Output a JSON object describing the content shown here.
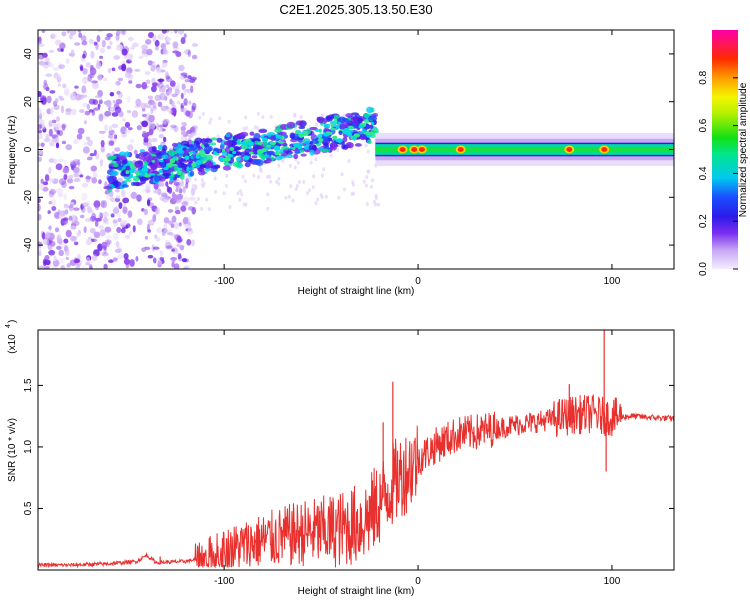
{
  "chart_data": [
    {
      "type": "heatmap",
      "title": "C2E1.2025.305.13.50.E30",
      "xlabel": "Height of straight line (km)",
      "ylabel": "Frequency (Hz)",
      "xlim": [
        -196,
        132
      ],
      "ylim": [
        -50,
        50
      ],
      "xticks": [
        -100,
        0,
        100
      ],
      "xtick_labels": [
        "-100",
        "0",
        "100"
      ],
      "yticks": [
        -40,
        -20,
        0,
        20,
        40
      ],
      "ytick_labels": [
        "-40",
        "-20",
        "0",
        "20",
        "40"
      ],
      "colorbar": {
        "label": "Normalized spectral amplitude",
        "range": [
          0,
          1
        ],
        "ticks": [
          0.0,
          0.2,
          0.4,
          0.6,
          0.8
        ],
        "tick_labels": [
          "0.0",
          "0.2",
          "0.4",
          "0.6",
          "0.8"
        ]
      },
      "features": {
        "noise_band_x": [
          -196,
          -115
        ],
        "trace_start_x": -160,
        "trace_end_x": -22,
        "trace_freq_start": -10,
        "trace_freq_end": 10,
        "band_start_x": -22,
        "band_freq": 0,
        "band_halfwidth_freq": 3,
        "peak_markers_x": [
          -8,
          -2,
          2,
          22,
          78,
          96
        ]
      }
    },
    {
      "type": "line",
      "xlabel": "Height of straight line (km)",
      "ylabel": "SNR (10 * v/v)",
      "y_multiplier_label": "(x10",
      "y_multiplier_exp": "4",
      "xlim": [
        -196,
        132
      ],
      "ylim": [
        0,
        19500
      ],
      "xticks": [
        -100,
        0,
        100
      ],
      "xtick_labels": [
        "-100",
        "0",
        "100"
      ],
      "yticks": [
        5000,
        10000,
        15000
      ],
      "ytick_labels": [
        "0.5",
        "1.0",
        "1.5"
      ],
      "series": [
        {
          "name": "SNR",
          "color": "#e8312e",
          "x": [
            -196,
            -180,
            -160,
            -145,
            -140,
            -135,
            -120,
            -110,
            -100,
            -90,
            -80,
            -70,
            -60,
            -50,
            -40,
            -30,
            -25,
            -20,
            -15,
            -10,
            -5,
            0,
            10,
            20,
            30,
            40,
            50,
            60,
            70,
            80,
            90,
            95,
            100,
            110,
            120,
            132
          ],
          "y": [
            400,
            400,
            500,
            700,
            1200,
            600,
            700,
            1000,
            1600,
            2000,
            2400,
            2700,
            3000,
            3100,
            3300,
            3800,
            4400,
            5400,
            6600,
            7500,
            8200,
            9000,
            10200,
            11000,
            11200,
            11500,
            11800,
            12000,
            12300,
            12600,
            12700,
            12500,
            12400,
            12500,
            12400,
            12300
          ]
        }
      ],
      "spikes": [
        {
          "x": -133,
          "y": 1100
        },
        {
          "x": -13,
          "y": 15300
        },
        {
          "x": -18,
          "y": 12000
        },
        {
          "x": 78,
          "y": 15100
        },
        {
          "x": 96,
          "y": 19500
        },
        {
          "x": 97,
          "y": 8000
        }
      ]
    }
  ]
}
